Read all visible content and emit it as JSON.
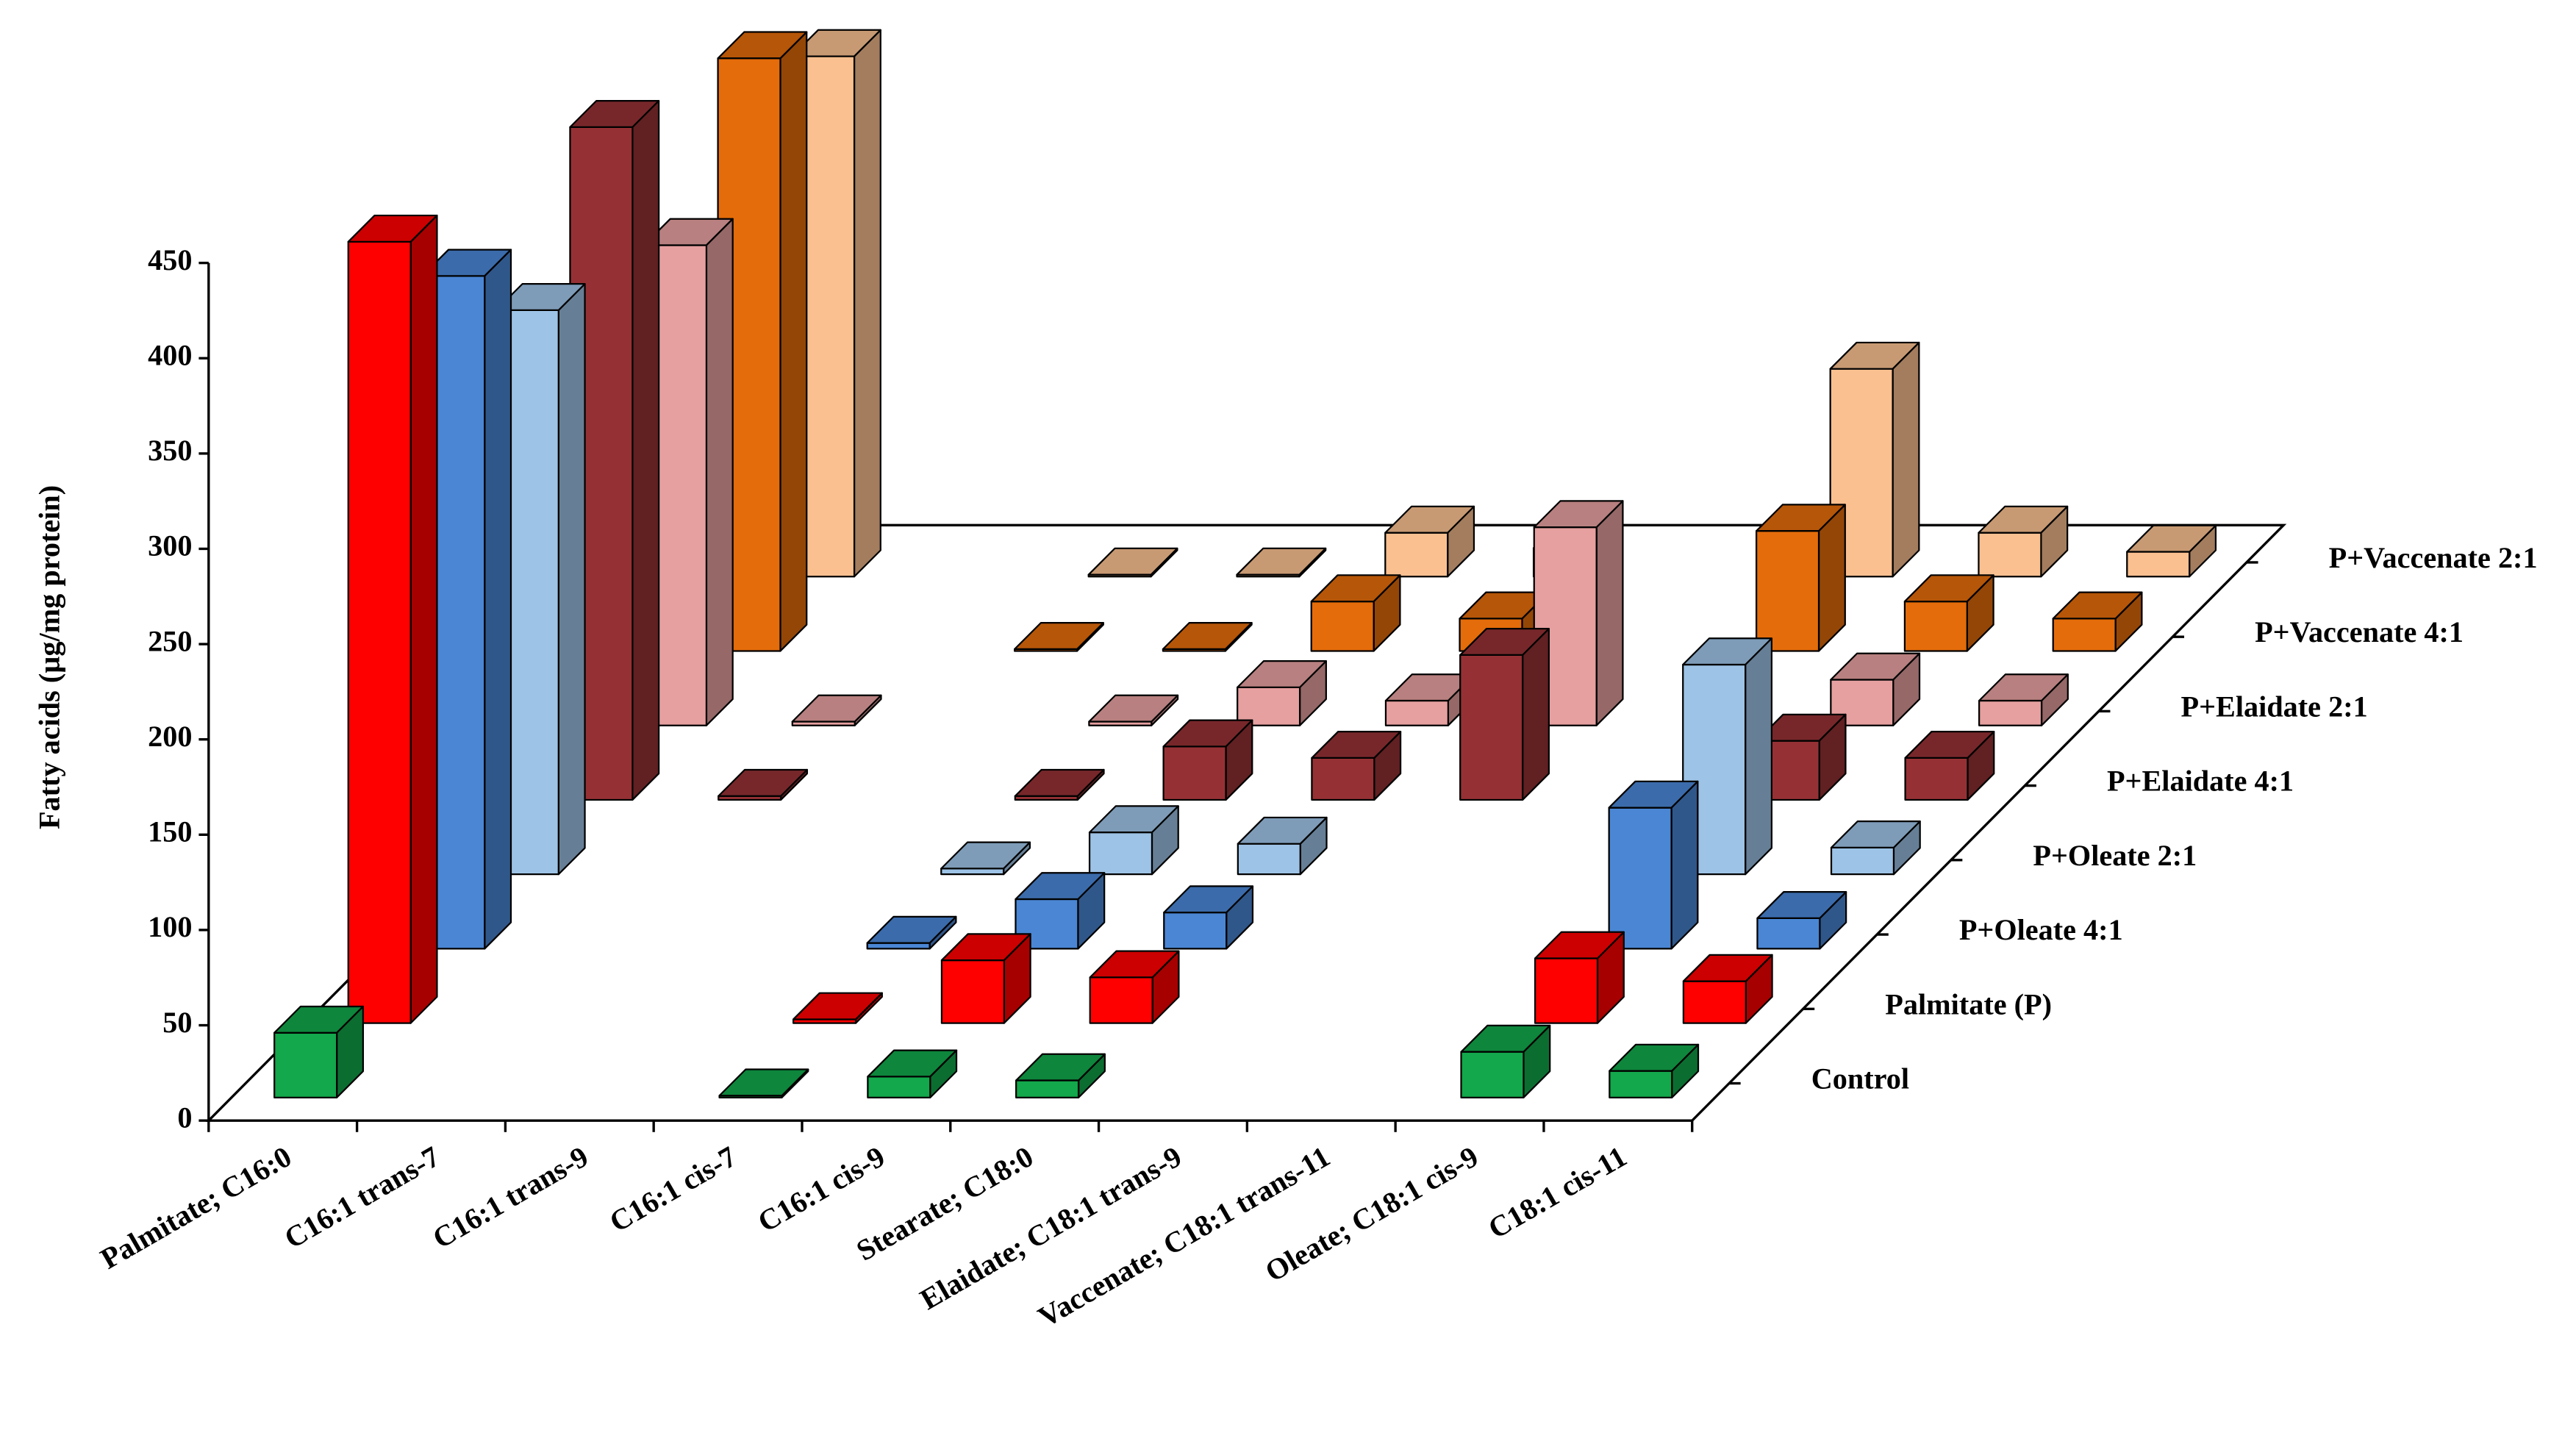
{
  "chart_data": {
    "type": "bar3d",
    "y_label": "Fatty acids (µg/mg protein)",
    "categories": [
      "Palmitate; C16:0",
      "C16:1 trans-7",
      "C16:1 trans-9",
      "C16:1 cis-7",
      "C16:1 cis-9",
      "Stearate; C18:0",
      "Elaidate; C18:1 trans-9",
      "Vaccenate; C18:1 trans-11",
      "Oleate; C18:1 cis-9",
      "C18:1 cis-11"
    ],
    "series": [
      {
        "name": "Control",
        "color": "#12a84b",
        "values": [
          34,
          null,
          null,
          1,
          11,
          9,
          null,
          null,
          24,
          14
        ]
      },
      {
        "name": "Palmitate (P)",
        "color": "#ff0000",
        "values": [
          410,
          null,
          null,
          2,
          33,
          24,
          null,
          null,
          34,
          22
        ]
      },
      {
        "name": "P+Oleate 4:1",
        "color": "#4a86d4",
        "values": [
          353,
          null,
          null,
          3,
          26,
          19,
          null,
          null,
          74,
          16
        ]
      },
      {
        "name": "P+Oleate 2:1",
        "color": "#9dc3e6",
        "values": [
          296,
          null,
          null,
          3,
          22,
          16,
          null,
          null,
          110,
          14
        ]
      },
      {
        "name": "P+Elaidate 4:1",
        "color": "#953135",
        "values": [
          353,
          2,
          null,
          2,
          28,
          22,
          76,
          null,
          31,
          22
        ]
      },
      {
        "name": "P+Elaidate 2:1",
        "color": "#e6a0a0",
        "values": [
          252,
          2,
          null,
          2,
          20,
          13,
          104,
          null,
          24,
          13
        ]
      },
      {
        "name": "P+Vaccenate 4:1",
        "color": "#e46c0a",
        "values": [
          311,
          null,
          1,
          1,
          26,
          17,
          null,
          63,
          26,
          17
        ]
      },
      {
        "name": "P+Vaccenate 2:1",
        "color": "#fac090",
        "values": [
          273,
          null,
          1,
          1,
          23,
          15,
          null,
          109,
          23,
          13
        ]
      }
    ],
    "ylim": [
      0,
      450
    ],
    "yticks": [
      0,
      50,
      100,
      150,
      200,
      250,
      300,
      350,
      400,
      450
    ]
  }
}
